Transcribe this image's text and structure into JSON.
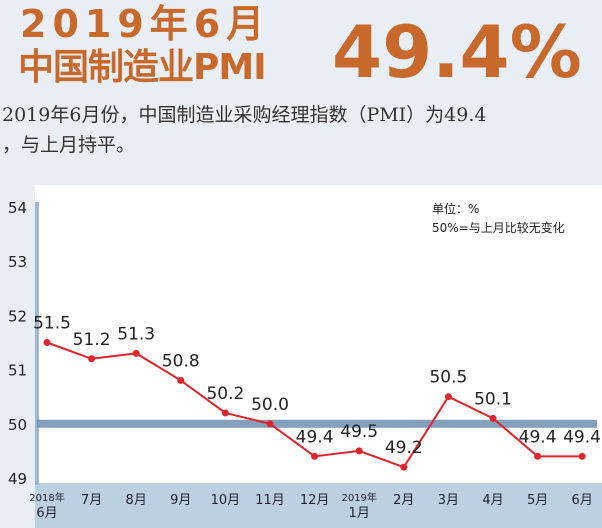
{
  "header": {
    "title_line1": "2019年6月",
    "title_line2": "中国制造业PMI",
    "headline_value": "49.4%"
  },
  "description": {
    "line1": "2019年6月份，中国制造业采购经理指数（PMI）为49.4",
    "line2": "，与上月持平。"
  },
  "colors": {
    "accent": "#c8682a",
    "series": "#e0242b",
    "baseline": "#6d8fb0",
    "axis_band": "#bcd0e2"
  },
  "chart_data": {
    "type": "line",
    "categories": [
      "2018年\n6月",
      "7月",
      "8月",
      "9月",
      "10月",
      "11月",
      "12月",
      "2019年\n1月",
      "2月",
      "3月",
      "4月",
      "5月",
      "6月"
    ],
    "values": [
      51.5,
      51.2,
      51.3,
      50.8,
      50.2,
      50.0,
      49.4,
      49.5,
      49.2,
      50.5,
      50.1,
      49.4,
      49.4
    ],
    "data_labels": [
      "51.5",
      "51.2",
      "51.3",
      "50.8",
      "50.2",
      "50.0",
      "49.4",
      "49.5",
      "49.2",
      "50.5",
      "50.1",
      "49.4",
      "49.4"
    ],
    "yticks": [
      "49",
      "50",
      "51",
      "52",
      "53",
      "54"
    ],
    "ylim": [
      49,
      54
    ],
    "reference_line": 50,
    "annotation_line1": "单位：%",
    "annotation_line2": "50%=与上月比较无变化",
    "grid": false
  }
}
